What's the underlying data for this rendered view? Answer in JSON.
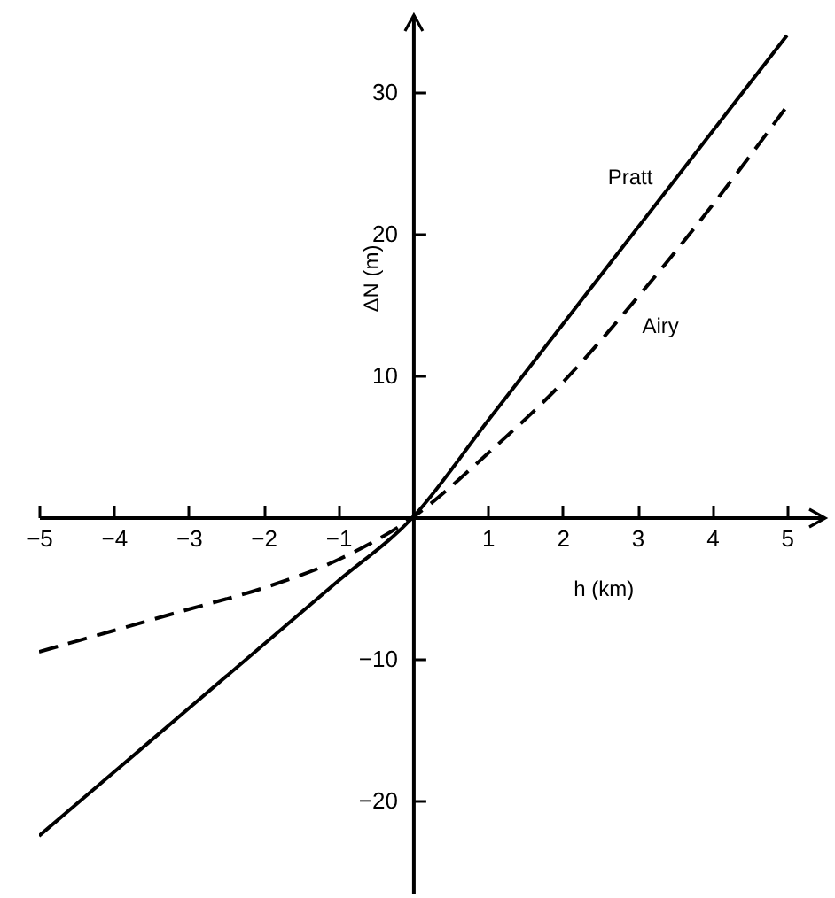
{
  "chart_data": {
    "type": "line",
    "xlabel": "h (km)",
    "ylabel": "ΔN (m)",
    "x": [
      -5,
      -4,
      -3,
      -2,
      -1,
      0,
      1,
      2,
      3,
      4,
      5
    ],
    "series": [
      {
        "name": "Pratt",
        "color": "#000000",
        "line_style": "solid",
        "values": [
          -22.5,
          -18,
          -13.5,
          -9,
          -4.5,
          0,
          6.8,
          13.6,
          20.4,
          27.2,
          34
        ]
      },
      {
        "name": "Airy",
        "color": "#000000",
        "line_style": "dashed",
        "values": [
          -9.5,
          -8,
          -6.5,
          -5,
          -3,
          0,
          4.5,
          9.5,
          15.5,
          22,
          29
        ]
      }
    ],
    "xlim": [
      -5,
      5.5
    ],
    "ylim": [
      -26.5,
      35.5
    ],
    "xticks": [
      -5,
      -4,
      -3,
      -2,
      -1,
      1,
      2,
      3,
      4,
      5
    ],
    "yticks": [
      -20,
      -10,
      10,
      20,
      30
    ],
    "grid": false
  }
}
